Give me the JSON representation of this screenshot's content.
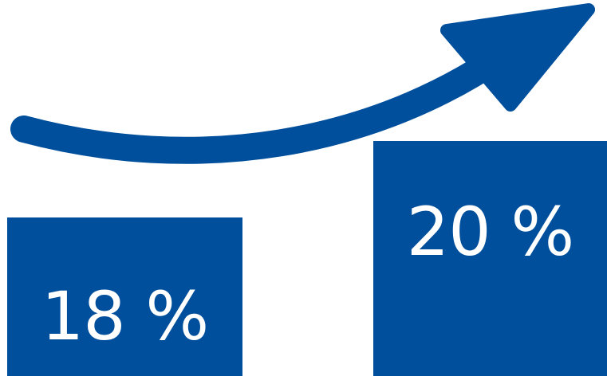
{
  "colors": {
    "accent": "#004f9c",
    "background": "#ffffff",
    "text_on_accent": "#ffffff"
  },
  "icons": {
    "trend": "curved-up-arrow-icon"
  },
  "figure": {
    "before_value": "18 %",
    "after_value": "20 %"
  }
}
